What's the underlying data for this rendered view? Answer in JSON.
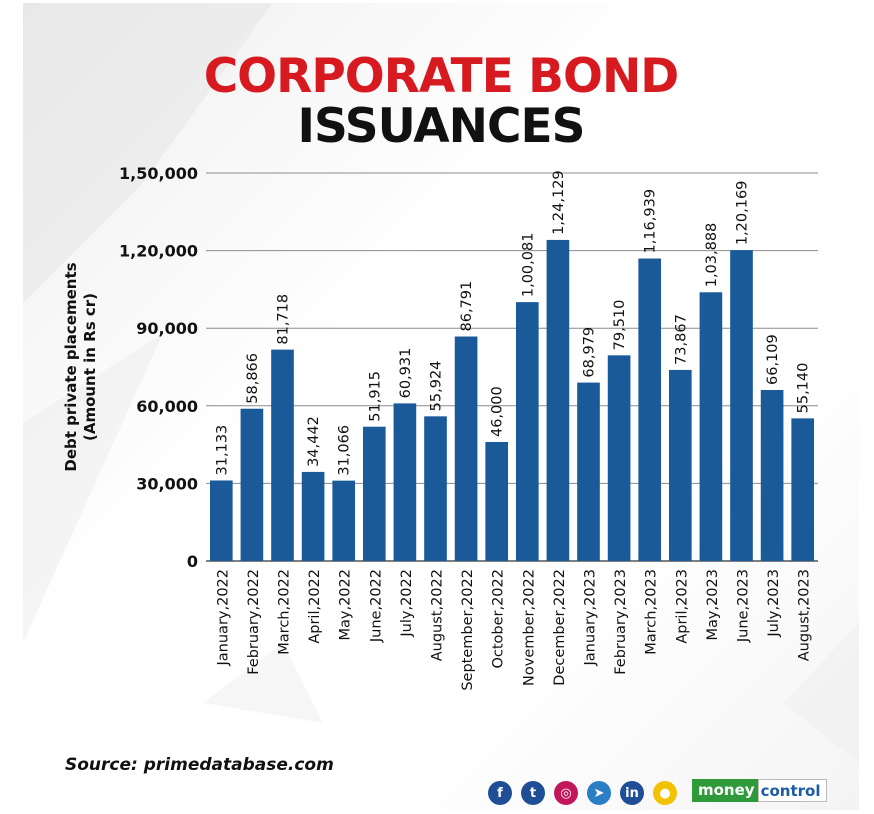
{
  "title_line1": "CORPORATE BOND",
  "title_line2": "ISSUANCES",
  "source": "Source: primedatabase.com",
  "brand": {
    "part1": "money",
    "part2": "control"
  },
  "social_icons": [
    {
      "name": "facebook-icon",
      "glyph": "f",
      "color": "#1f4e96"
    },
    {
      "name": "twitter-icon",
      "glyph": "t",
      "color": "#1f4e96"
    },
    {
      "name": "instagram-icon",
      "glyph": "◎",
      "color": "#c2185b"
    },
    {
      "name": "telegram-icon",
      "glyph": "➤",
      "color": "#2a7fc4"
    },
    {
      "name": "linkedin-icon",
      "glyph": "in",
      "color": "#1f4e96"
    },
    {
      "name": "koo-icon",
      "glyph": "●",
      "color": "#f2c200"
    }
  ],
  "colors": {
    "bar": "#1a5a99",
    "title_red": "#d71920",
    "grid": "#8c8c8c"
  },
  "chart_data": {
    "type": "bar",
    "ylabel": "Debt private placements (Amount in Rs cr)",
    "ylabel_lines": [
      "Debt private placements",
      "(Amount in Rs cr)"
    ],
    "ylim": [
      0,
      150000
    ],
    "yticks": [
      0,
      30000,
      60000,
      90000,
      120000,
      150000
    ],
    "ytick_labels": [
      "0",
      "30,000",
      "60,000",
      "90,000",
      "1,20,000",
      "1,50,000"
    ],
    "grid": true,
    "categories": [
      "January,2022",
      "February,2022",
      "March,2022",
      "April,2022",
      "May,2022",
      "June,2022",
      "July,2022",
      "August,2022",
      "September,2022",
      "October,2022",
      "November,2022",
      "December,2022",
      "January,2023",
      "February,2023",
      "March,2023",
      "April,2023",
      "May,2023",
      "June,2023",
      "July,2023",
      "August,2023"
    ],
    "values": [
      31133,
      58866,
      81718,
      34442,
      31066,
      51915,
      60931,
      55924,
      86791,
      46000,
      100081,
      124129,
      68979,
      79510,
      116939,
      73867,
      103888,
      120169,
      66109,
      55140
    ],
    "value_labels": [
      "31,133",
      "58,866",
      "81,718",
      "34,442",
      "31,066",
      "51,915",
      "60,931",
      "55,924",
      "86,791",
      "46,000",
      "1,00,081",
      "1,24,129",
      "68,979",
      "79,510",
      "1,16,939",
      "73,867",
      "1,03,888",
      "1,20,169",
      "66,109",
      "55,140"
    ]
  }
}
